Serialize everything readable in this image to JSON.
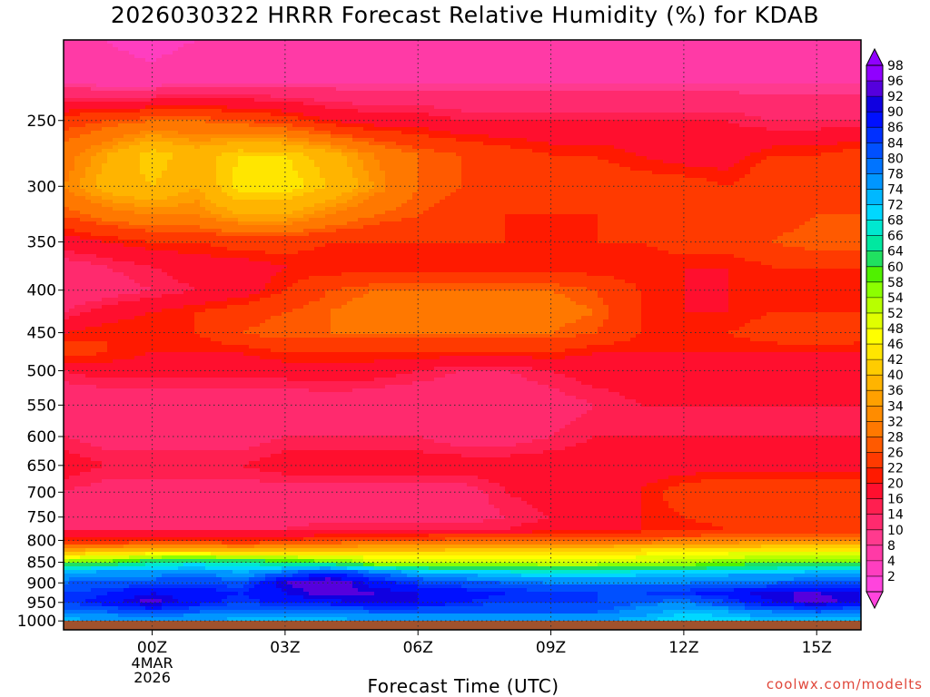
{
  "title": "2026030322 HRRR Forecast Relative Humidity (%) for KDAB",
  "xlabel": "Forecast Time (UTC)",
  "credit": "coolwx.com/modelts",
  "date_label": [
    "4MAR",
    "2026"
  ],
  "chart_data": {
    "type": "heatmap",
    "title": "2026030322 HRRR Forecast Relative Humidity (%) for KDAB",
    "xlabel": "Forecast Time (UTC)",
    "ylabel": "",
    "x_ticks": [
      "00Z",
      "03Z",
      "06Z",
      "09Z",
      "12Z",
      "15Z"
    ],
    "x_hours": [
      0,
      3,
      6,
      9,
      12,
      15
    ],
    "x_range_hours": [
      -2,
      16
    ],
    "y_ticks": [
      250,
      300,
      350,
      400,
      450,
      500,
      550,
      600,
      650,
      700,
      750,
      800,
      850,
      900,
      950,
      1000
    ],
    "y_range_hpa": [
      200,
      1025
    ],
    "y_scale": "log",
    "grid": true,
    "colorbar_levels": [
      2,
      4,
      8,
      10,
      14,
      16,
      20,
      22,
      26,
      28,
      32,
      34,
      36,
      40,
      42,
      46,
      48,
      52,
      54,
      58,
      60,
      64,
      66,
      68,
      72,
      74,
      78,
      80,
      84,
      86,
      90,
      92,
      96,
      98
    ],
    "colorbar_colors": [
      "#ff44dd",
      "#ff3ec0",
      "#ff3aa6",
      "#ff3a8e",
      "#ff2a6e",
      "#ff1f50",
      "#ff0f2e",
      "#ff1a00",
      "#ff3a00",
      "#ff5a00",
      "#ff7800",
      "#ff8c00",
      "#ffa000",
      "#ffb400",
      "#ffcc00",
      "#ffe600",
      "#ffff00",
      "#e0ff00",
      "#b8ff00",
      "#8cff00",
      "#50f000",
      "#20e060",
      "#00e8a0",
      "#00e8d0",
      "#00d8ff",
      "#00b8ff",
      "#0096ff",
      "#0074ff",
      "#0050ff",
      "#0030ff",
      "#0010ff",
      "#1000e0",
      "#5500dd",
      "#9000ff"
    ],
    "rows": [
      {
        "p": 200,
        "rh": [
          6,
          4,
          2,
          4,
          6,
          6,
          6,
          6,
          6,
          6,
          6,
          6,
          6,
          6,
          6,
          6,
          6,
          6,
          6
        ]
      },
      {
        "p": 225,
        "rh": [
          8,
          6,
          6,
          8,
          8,
          8,
          8,
          8,
          8,
          8,
          8,
          8,
          8,
          8,
          8,
          8,
          8,
          8,
          8
        ]
      },
      {
        "p": 250,
        "rh": [
          24,
          26,
          28,
          28,
          26,
          24,
          20,
          18,
          18,
          16,
          16,
          16,
          16,
          16,
          16,
          16,
          14,
          14,
          14
        ]
      },
      {
        "p": 275,
        "rh": [
          30,
          36,
          42,
          38,
          42,
          42,
          38,
          32,
          28,
          26,
          24,
          22,
          22,
          20,
          18,
          18,
          22,
          22,
          24
        ]
      },
      {
        "p": 300,
        "rh": [
          32,
          38,
          40,
          36,
          44,
          44,
          40,
          34,
          28,
          26,
          24,
          24,
          24,
          24,
          24,
          22,
          26,
          26,
          26
        ]
      },
      {
        "p": 325,
        "rh": [
          26,
          30,
          32,
          32,
          36,
          36,
          32,
          28,
          26,
          24,
          22,
          22,
          22,
          24,
          24,
          22,
          24,
          26,
          26
        ]
      },
      {
        "p": 350,
        "rh": [
          18,
          20,
          22,
          22,
          24,
          24,
          22,
          22,
          22,
          22,
          22,
          22,
          22,
          22,
          24,
          24,
          26,
          28,
          28
        ]
      },
      {
        "p": 375,
        "rh": [
          12,
          14,
          16,
          18,
          18,
          20,
          20,
          20,
          20,
          20,
          20,
          20,
          20,
          20,
          20,
          20,
          22,
          22,
          22
        ]
      },
      {
        "p": 400,
        "rh": [
          10,
          12,
          14,
          16,
          18,
          22,
          26,
          28,
          28,
          28,
          28,
          28,
          26,
          22,
          20,
          20,
          20,
          20,
          20
        ]
      },
      {
        "p": 425,
        "rh": [
          14,
          18,
          20,
          22,
          24,
          26,
          28,
          30,
          30,
          32,
          32,
          30,
          28,
          22,
          20,
          20,
          22,
          22,
          22
        ]
      },
      {
        "p": 450,
        "rh": [
          20,
          22,
          22,
          22,
          26,
          28,
          28,
          28,
          28,
          28,
          28,
          28,
          26,
          22,
          20,
          22,
          24,
          26,
          24
        ]
      },
      {
        "p": 475,
        "rh": [
          24,
          22,
          20,
          20,
          20,
          22,
          22,
          22,
          22,
          22,
          22,
          22,
          20,
          20,
          20,
          20,
          20,
          20,
          20
        ]
      },
      {
        "p": 500,
        "rh": [
          16,
          18,
          18,
          18,
          18,
          18,
          18,
          18,
          16,
          14,
          14,
          16,
          18,
          18,
          18,
          18,
          18,
          18,
          18
        ]
      },
      {
        "p": 550,
        "rh": [
          10,
          10,
          10,
          10,
          10,
          10,
          12,
          10,
          10,
          10,
          10,
          12,
          14,
          16,
          16,
          16,
          16,
          16,
          16
        ]
      },
      {
        "p": 600,
        "rh": [
          14,
          12,
          12,
          12,
          12,
          14,
          14,
          14,
          14,
          12,
          12,
          14,
          16,
          16,
          16,
          16,
          16,
          16,
          16
        ]
      },
      {
        "p": 650,
        "rh": [
          18,
          16,
          16,
          16,
          16,
          18,
          18,
          18,
          18,
          18,
          18,
          18,
          18,
          18,
          18,
          18,
          18,
          18,
          18
        ]
      },
      {
        "p": 700,
        "rh": [
          14,
          12,
          12,
          12,
          12,
          12,
          12,
          12,
          12,
          12,
          16,
          18,
          18,
          20,
          24,
          26,
          26,
          26,
          26
        ]
      },
      {
        "p": 750,
        "rh": [
          10,
          10,
          10,
          10,
          10,
          12,
          12,
          12,
          12,
          12,
          14,
          16,
          18,
          20,
          22,
          24,
          26,
          26,
          26
        ]
      },
      {
        "p": 775,
        "rh": [
          14,
          14,
          14,
          14,
          14,
          14,
          16,
          16,
          16,
          16,
          16,
          18,
          18,
          20,
          20,
          22,
          22,
          22,
          22
        ]
      },
      {
        "p": 800,
        "rh": [
          22,
          22,
          22,
          22,
          22,
          22,
          24,
          26,
          26,
          28,
          28,
          28,
          28,
          28,
          30,
          30,
          32,
          32,
          32
        ]
      },
      {
        "p": 825,
        "rh": [
          36,
          40,
          42,
          42,
          40,
          42,
          40,
          42,
          42,
          42,
          42,
          42,
          42,
          44,
          46,
          46,
          48,
          48,
          48
        ]
      },
      {
        "p": 850,
        "rh": [
          56,
          60,
          64,
          66,
          64,
          62,
          60,
          52,
          52,
          52,
          50,
          50,
          50,
          52,
          54,
          56,
          58,
          58,
          58
        ]
      },
      {
        "p": 875,
        "rh": [
          74,
          76,
          76,
          78,
          74,
          80,
          86,
          80,
          74,
          72,
          70,
          68,
          68,
          70,
          70,
          72,
          72,
          74,
          74
        ]
      },
      {
        "p": 900,
        "rh": [
          80,
          82,
          82,
          84,
          82,
          92,
          96,
          88,
          84,
          82,
          80,
          78,
          78,
          78,
          78,
          80,
          80,
          82,
          82
        ]
      },
      {
        "p": 925,
        "rh": [
          84,
          86,
          90,
          88,
          86,
          90,
          94,
          92,
          90,
          88,
          86,
          86,
          84,
          84,
          86,
          88,
          92,
          92,
          90
        ]
      },
      {
        "p": 950,
        "rh": [
          84,
          88,
          94,
          88,
          84,
          88,
          88,
          92,
          90,
          86,
          84,
          84,
          84,
          80,
          78,
          84,
          90,
          94,
          90
        ]
      },
      {
        "p": 975,
        "rh": [
          78,
          80,
          82,
          80,
          78,
          78,
          78,
          80,
          80,
          80,
          80,
          80,
          80,
          76,
          72,
          74,
          78,
          80,
          78
        ]
      },
      {
        "p": 1000,
        "rh": [
          72,
          74,
          74,
          74,
          72,
          72,
          72,
          74,
          74,
          74,
          74,
          74,
          74,
          72,
          70,
          70,
          72,
          72,
          72
        ]
      },
      {
        "p": 1025,
        "rh": [
          72,
          74,
          74,
          74,
          72,
          72,
          72,
          74,
          74,
          74,
          74,
          74,
          74,
          72,
          70,
          70,
          72,
          72,
          72
        ]
      }
    ],
    "ground_color": "#a0522d"
  }
}
